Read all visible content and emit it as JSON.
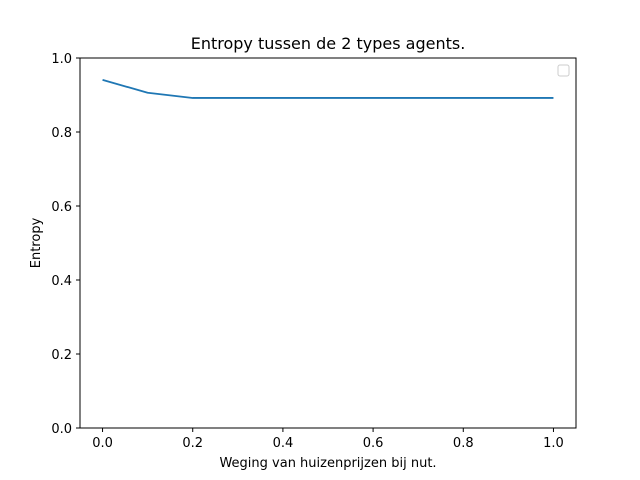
{
  "chart_data": {
    "type": "line",
    "title": "Entropy tussen de 2 types agents.",
    "xlabel": "Weging van huizenprijzen bij nut.",
    "ylabel": "Entropy",
    "xlim": [
      -0.05,
      1.05
    ],
    "ylim": [
      0.0,
      1.0
    ],
    "xticks": [
      "0.0",
      "0.2",
      "0.4",
      "0.6",
      "0.8",
      "1.0"
    ],
    "yticks": [
      "0.0",
      "0.2",
      "0.4",
      "0.6",
      "0.8",
      "1.0"
    ],
    "grid": false,
    "legend": "top-right",
    "series": [
      {
        "color": "#1f77b4",
        "x": [
          0.0,
          0.1,
          0.2,
          0.3,
          0.4,
          0.5,
          0.6,
          0.7,
          0.8,
          0.9,
          1.0
        ],
        "y": [
          0.941,
          0.906,
          0.892,
          0.892,
          0.892,
          0.892,
          0.892,
          0.892,
          0.892,
          0.892,
          0.892
        ]
      }
    ]
  }
}
